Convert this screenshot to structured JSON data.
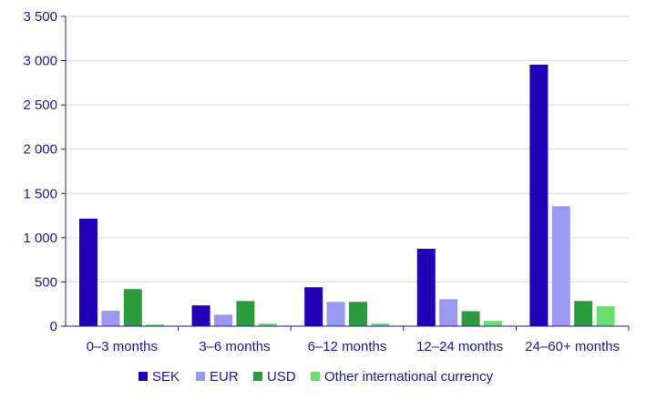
{
  "chart_data": {
    "type": "bar",
    "title": "",
    "xlabel": "",
    "ylabel": "",
    "ylim": [
      0,
      3500
    ],
    "yticks": [
      0,
      500,
      1000,
      1500,
      2000,
      2500,
      3000,
      3500
    ],
    "ytick_labels": [
      "0",
      "500",
      "1 000",
      "1 500",
      "2 000",
      "2 500",
      "3 000",
      "3 500"
    ],
    "grid": true,
    "legend_position": "bottom",
    "categories": [
      "0–3 months",
      "3–6 months",
      "6–12 months",
      "12–24 months",
      "24–60+ months"
    ],
    "series": [
      {
        "name": "SEK",
        "color": "#2200b8",
        "values": [
          1215,
          235,
          440,
          875,
          2955
        ]
      },
      {
        "name": "EUR",
        "color": "#9999f0",
        "values": [
          175,
          130,
          275,
          305,
          1355
        ]
      },
      {
        "name": "USD",
        "color": "#2e9a40",
        "values": [
          420,
          285,
          275,
          170,
          285
        ]
      },
      {
        "name": "Other international currency",
        "color": "#6ddc70",
        "values": [
          20,
          30,
          30,
          60,
          225
        ]
      }
    ]
  }
}
